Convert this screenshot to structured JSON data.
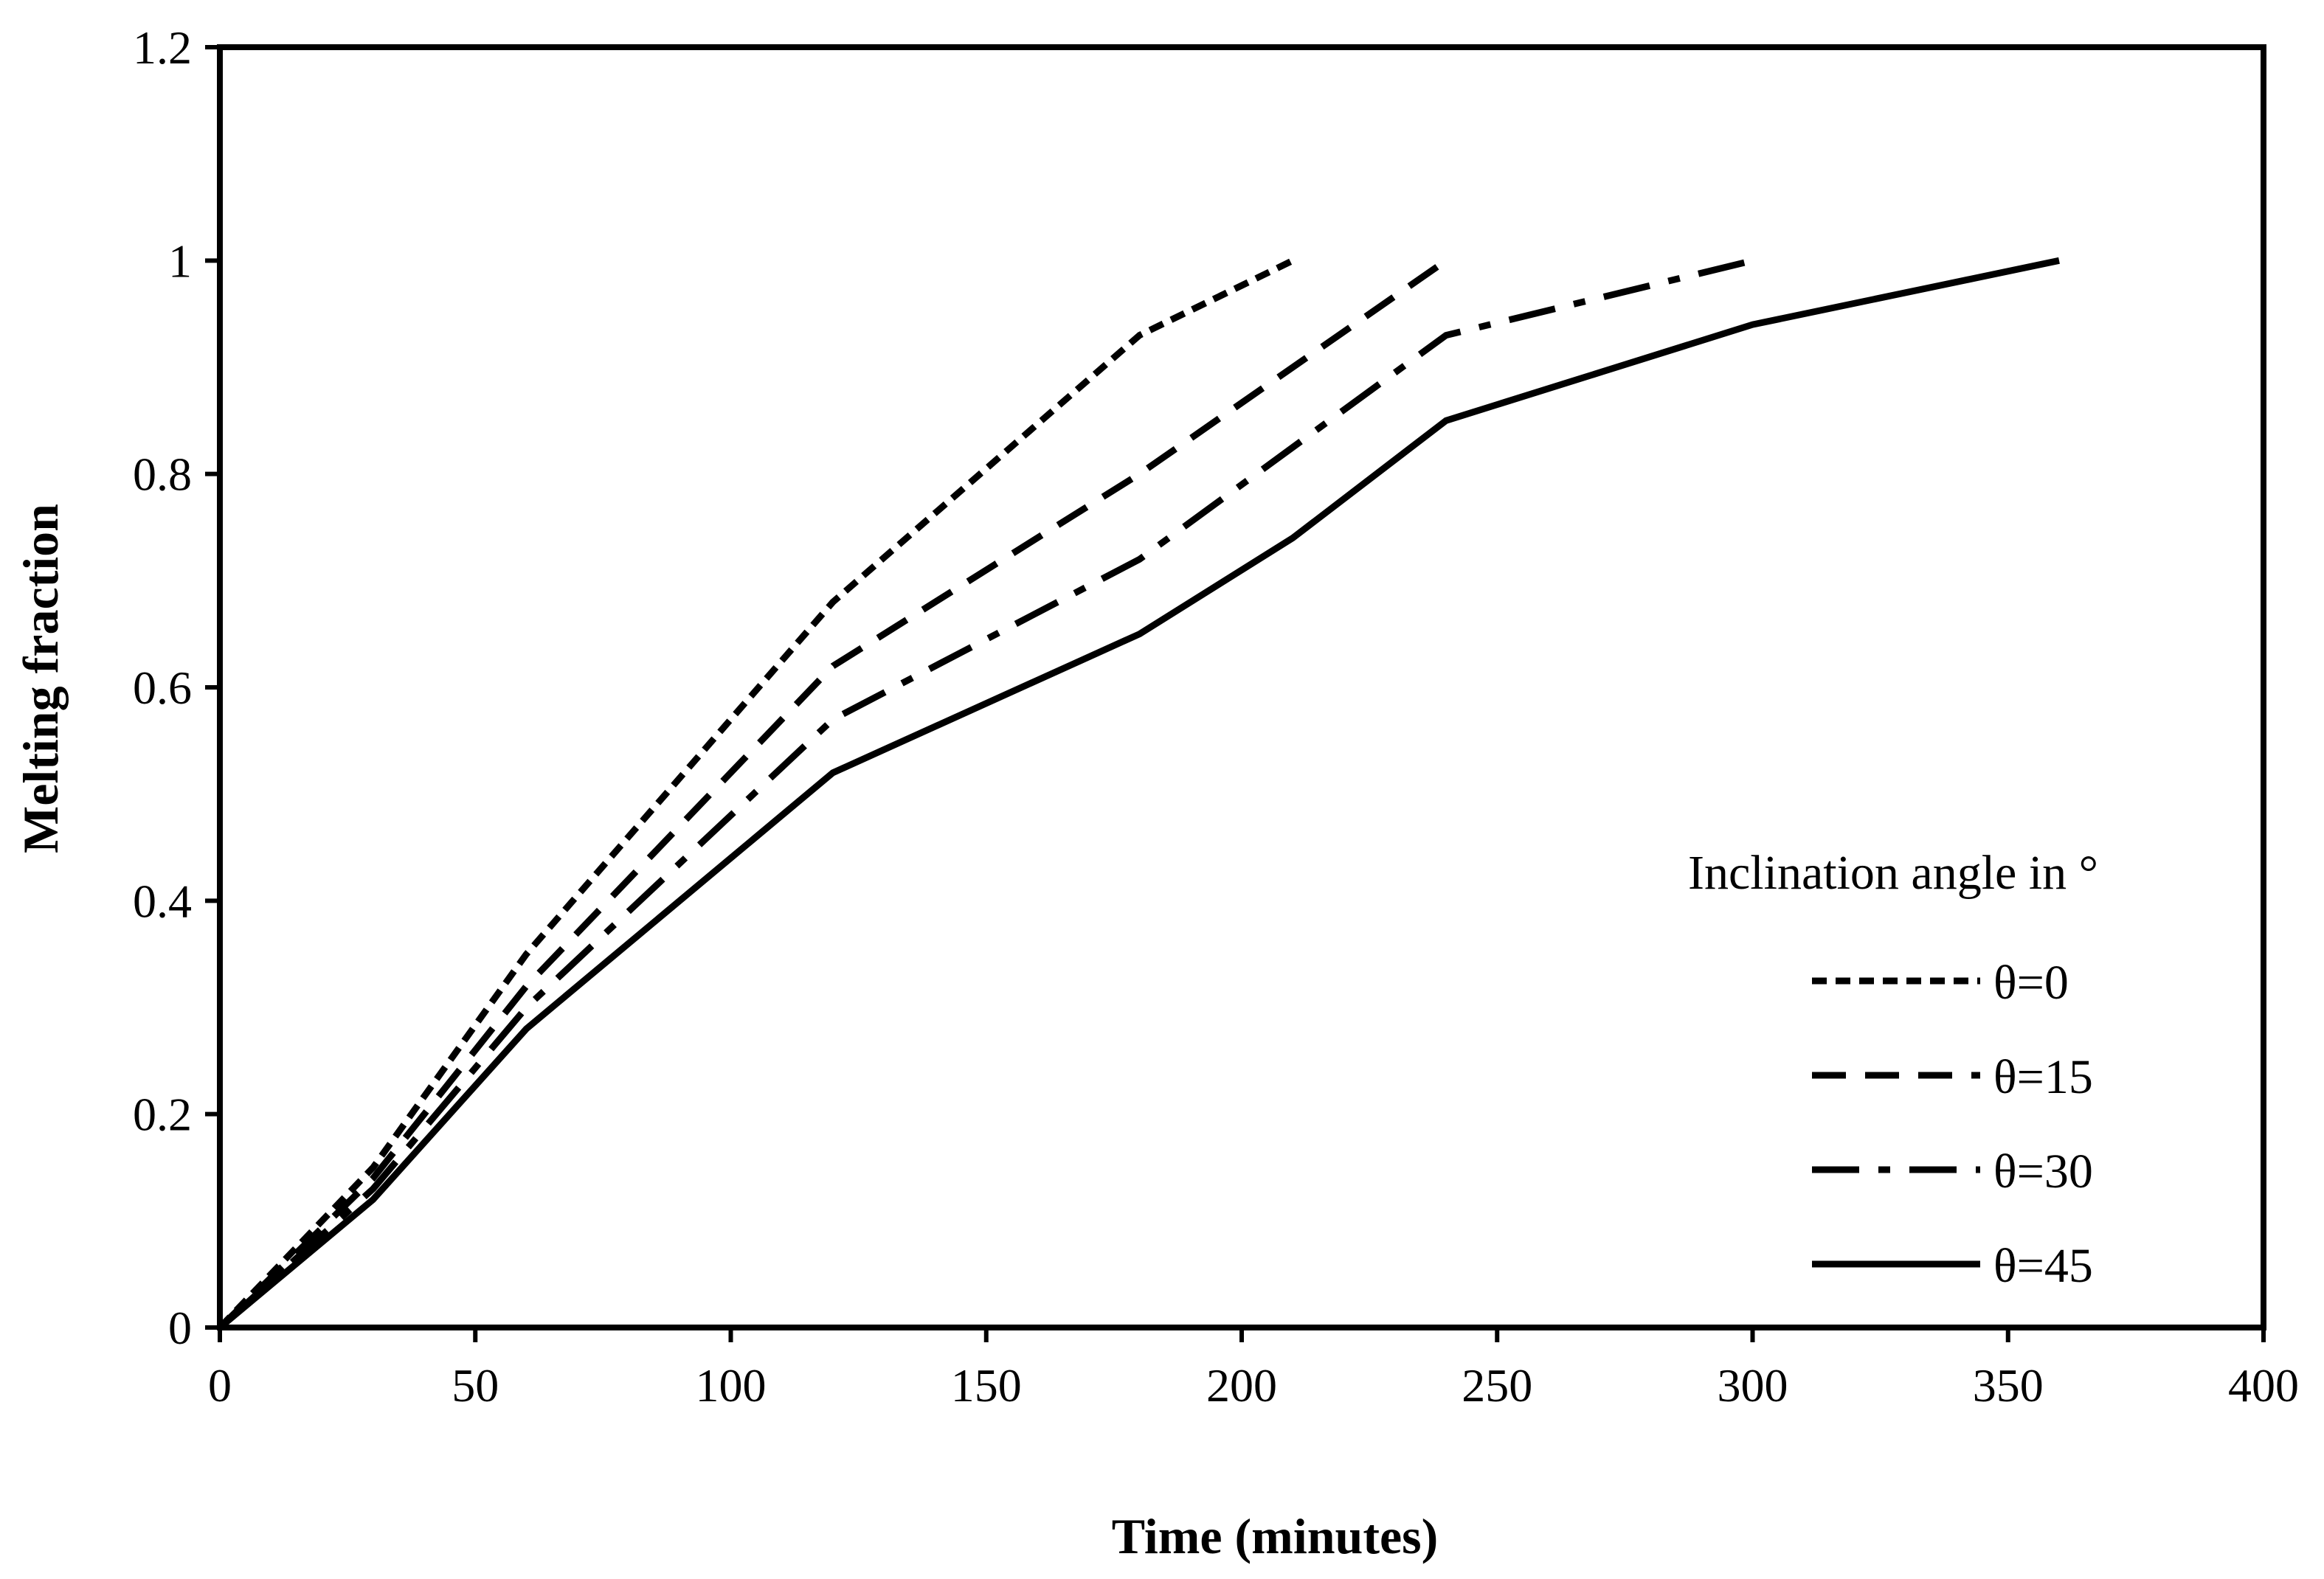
{
  "chart_data": {
    "type": "line",
    "title": "",
    "xlabel": "Time (minutes)",
    "ylabel": "Melting fraction",
    "xlim": [
      0,
      400
    ],
    "ylim": [
      0,
      1.2
    ],
    "x_ticks": [
      0,
      50,
      100,
      150,
      200,
      250,
      300,
      350,
      400
    ],
    "x_tick_labels": [
      "0",
      "50",
      "100",
      "150",
      "200",
      "250",
      "300",
      "350",
      "400"
    ],
    "y_ticks": [
      0,
      0.2,
      0.4,
      0.6,
      0.8,
      1,
      1.2
    ],
    "y_tick_labels": [
      "0",
      "0.2",
      "0.4",
      "0.6",
      "0.8",
      "1",
      "1.2"
    ],
    "grid": false,
    "legend": {
      "title": "Inclination angle in °",
      "placement": "bottom-right"
    },
    "series": [
      {
        "name": "θ=0",
        "style": "dotted",
        "color": "#000000",
        "x": [
          0,
          30,
          60,
          120,
          180,
          210
        ],
        "y": [
          0,
          0.15,
          0.35,
          0.68,
          0.93,
          1.0
        ]
      },
      {
        "name": "θ=15",
        "style": "dashed",
        "color": "#000000",
        "x": [
          0,
          30,
          60,
          120,
          180,
          240
        ],
        "y": [
          0,
          0.14,
          0.32,
          0.62,
          0.8,
          1.0
        ]
      },
      {
        "name": "θ=30",
        "style": "dash-dot",
        "color": "#000000",
        "x": [
          0,
          30,
          60,
          120,
          180,
          240,
          300
        ],
        "y": [
          0,
          0.13,
          0.3,
          0.57,
          0.72,
          0.93,
          1.0
        ]
      },
      {
        "name": "θ=45",
        "style": "solid",
        "color": "#000000",
        "x": [
          0,
          30,
          60,
          120,
          180,
          210,
          240,
          300,
          360
        ],
        "y": [
          0,
          0.12,
          0.28,
          0.52,
          0.65,
          0.74,
          0.85,
          0.94,
          1.0
        ]
      }
    ]
  }
}
